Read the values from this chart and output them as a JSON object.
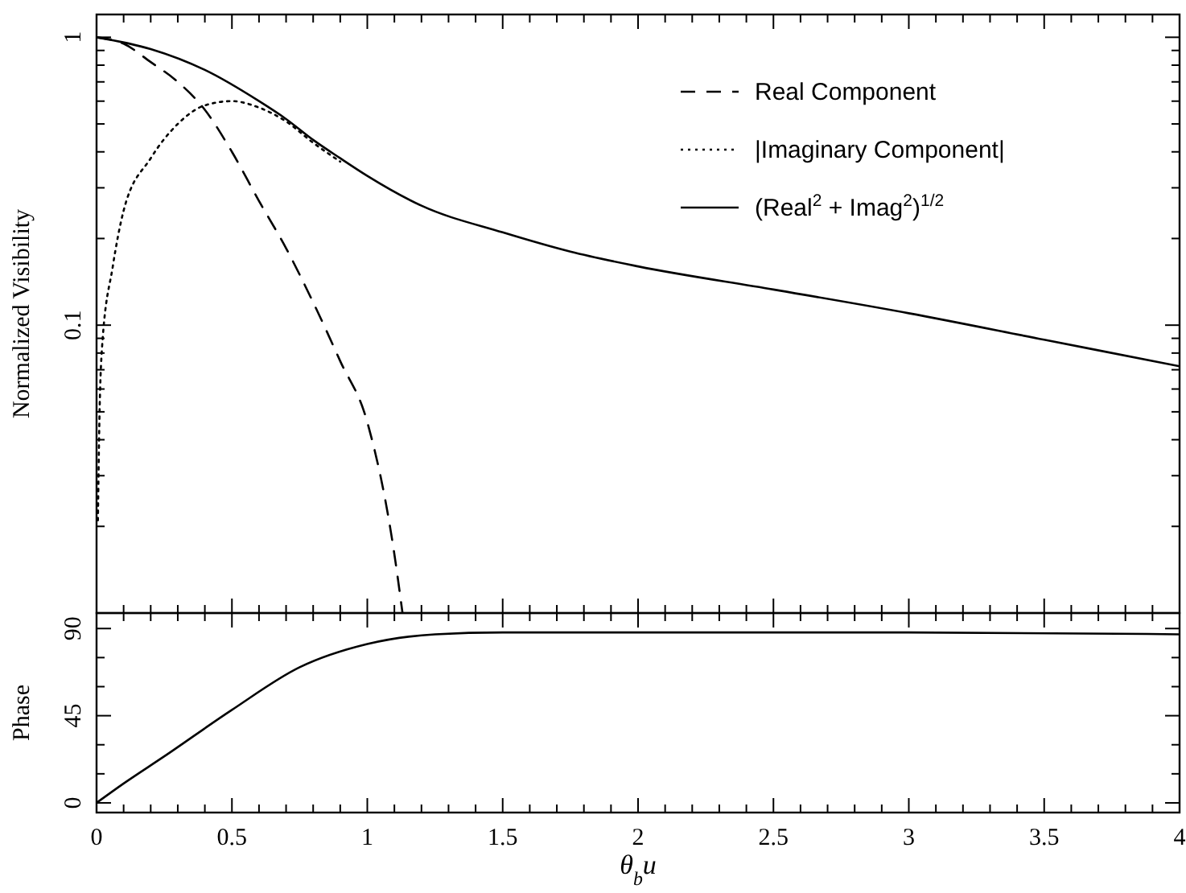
{
  "chart_data": [
    {
      "type": "line",
      "ylabel": "Normalized Visibility",
      "log": "y",
      "legend": "top right",
      "tick_labels": "y",
      "xlim": [
        0,
        4
      ],
      "xticks": [
        0,
        0.5,
        1,
        1.5,
        2,
        2.5,
        3,
        3.5,
        4
      ],
      "ylim": [
        0.01,
        1.2
      ],
      "yticks": [
        {
          "value": 0.02,
          "label": null
        },
        {
          "value": 0.03,
          "label": null
        },
        {
          "value": 0.04,
          "label": null
        },
        {
          "value": 0.05,
          "label": null
        },
        {
          "value": 0.06,
          "label": null
        },
        {
          "value": 0.07,
          "label": null
        },
        {
          "value": 0.08,
          "label": null
        },
        {
          "value": 0.09,
          "label": null
        },
        0.1,
        {
          "value": 0.2,
          "label": null
        },
        {
          "value": 0.3,
          "label": null
        },
        {
          "value": 0.4,
          "label": null
        },
        {
          "value": 0.5,
          "label": null
        },
        {
          "value": 0.6,
          "label": null
        },
        {
          "value": 0.7,
          "label": null
        },
        {
          "value": 0.8,
          "label": null
        },
        {
          "value": 0.9,
          "label": null
        },
        1
      ],
      "series": [
        {
          "name": "Real Component",
          "color": "#000000",
          "line_style": "dashed",
          "x": [
            0,
            0.1,
            0.2,
            0.3,
            0.4,
            0.5,
            0.6,
            0.7,
            0.8,
            0.9,
            1.0,
            1.1,
            1.13
          ],
          "values": [
            1,
            0.95,
            0.82,
            0.7,
            0.56,
            0.4,
            0.27,
            0.185,
            0.12,
            0.075,
            0.046,
            0.016,
            0.01
          ]
        },
        {
          "name": "|Imaginary Component|",
          "color": "#000000",
          "line_style": "dotted",
          "x": [
            0.005,
            0.01,
            0.02,
            0.06,
            0.1,
            0.2,
            0.3,
            0.4,
            0.5,
            0.6,
            0.7,
            0.8,
            0.9
          ],
          "values": [
            0.021,
            0.044,
            0.083,
            0.16,
            0.25,
            0.38,
            0.5,
            0.58,
            0.6,
            0.57,
            0.51,
            0.43,
            0.37
          ]
        },
        {
          "name": "(Real$^{2}$ + Imag$^{2}$)$^{1/2}$",
          "color": "#000000",
          "line_style": "solid",
          "x": [
            0,
            0.2,
            0.4,
            0.6,
            0.7,
            0.8,
            0.9,
            1.0,
            1.2,
            1.5,
            1.75,
            2,
            2.5,
            3,
            3.5,
            4
          ],
          "values": [
            1,
            0.91,
            0.77,
            0.6,
            0.52,
            0.44,
            0.38,
            0.33,
            0.26,
            0.21,
            0.18,
            0.16,
            0.133,
            0.11,
            0.089,
            0.072
          ]
        }
      ]
    },
    {
      "type": "line",
      "xlabel": "θ$_{b}$u",
      "ylabel": "Phase",
      "xlim": [
        0,
        4
      ],
      "xticks": [
        0,
        0.5,
        1,
        1.5,
        2,
        2.5,
        3,
        3.5,
        4
      ],
      "ylim": [
        -5,
        98
      ],
      "yticks": [
        0,
        {
          "value": 15,
          "label": null
        },
        {
          "value": 30,
          "label": null
        },
        45,
        {
          "value": 60,
          "label": null
        },
        {
          "value": 75,
          "label": null
        },
        90
      ],
      "series": [
        {
          "color": "#000000",
          "line_style": "solid",
          "x": [
            0,
            0.1,
            0.25,
            0.5,
            0.75,
            1.0,
            1.25,
            1.5,
            2,
            3,
            4
          ],
          "values": [
            0,
            10,
            24,
            48,
            70,
            82,
            87,
            88,
            88,
            88,
            87
          ]
        }
      ]
    }
  ]
}
